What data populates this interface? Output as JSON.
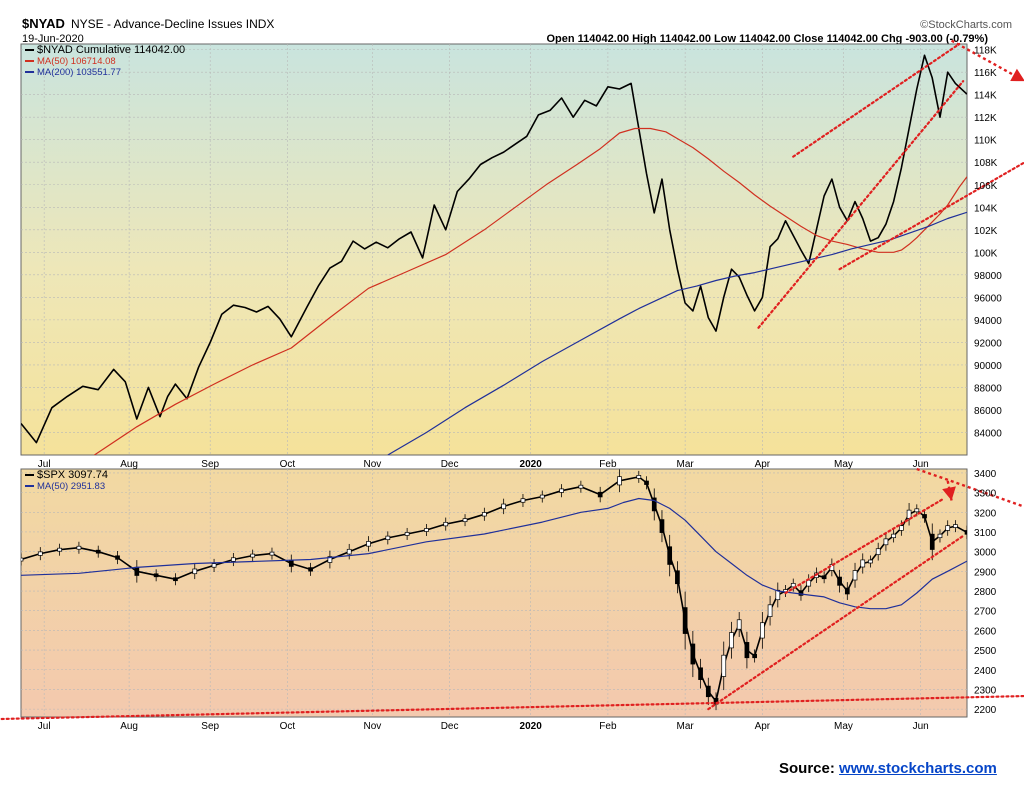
{
  "header": {
    "symbol": "$NYAD",
    "description": "NYSE - Advance-Decline Issues INDX",
    "date": "19-Jun-2020",
    "watermark": "©StockCharts.com",
    "ohlc_text": "Open 114042.00  High 114042.00  Low 114042.00  Close 114042.00  Chg -903.00 (-0.79%)"
  },
  "source": {
    "label": "Source:",
    "link": "www.stockcharts.com"
  },
  "chart_data": [
    {
      "type": "line",
      "panel": "upper",
      "legend": [
        {
          "label": "$NYAD Cumulative 114042.00",
          "color": "#000000"
        },
        {
          "label": "MA(50) 106714.08",
          "color": "#d03020"
        },
        {
          "label": "MA(200) 103551.77",
          "color": "#20309a"
        }
      ],
      "x_labels": [
        "Jul",
        "Aug",
        "Sep",
        "Oct",
        "Nov",
        "Dec",
        "2020",
        "Feb",
        "Mar",
        "Apr",
        "May",
        "Jun"
      ],
      "x_range": [
        0,
        245
      ],
      "label_x": [
        6,
        28,
        49,
        69,
        91,
        111,
        132,
        152,
        172,
        192,
        213,
        233
      ],
      "ylim": [
        82000,
        118500
      ],
      "y_ticks": [
        84000,
        86000,
        88000,
        90000,
        92000,
        94000,
        96000,
        98000,
        100000,
        102000,
        104000,
        106000,
        108000,
        110000,
        112000,
        114000,
        116000,
        118000
      ],
      "y_tick_labels": [
        "84000",
        "86000",
        "88000",
        "90000",
        "92000",
        "94000",
        "96000",
        "98000",
        "100K",
        "102K",
        "104K",
        "106K",
        "108K",
        "110K",
        "112K",
        "114K",
        "116K",
        "118K"
      ],
      "series": [
        {
          "name": "$NYAD Cumulative",
          "color": "#000000",
          "x": [
            0,
            4,
            8,
            12,
            16,
            20,
            24,
            27,
            30,
            33,
            36,
            38,
            40,
            43,
            46,
            49,
            52,
            55,
            58,
            61,
            64,
            67,
            70,
            72,
            74,
            77,
            80,
            83,
            86,
            89,
            92,
            95,
            98,
            101,
            104,
            107,
            110,
            113,
            116,
            119,
            122,
            125,
            128,
            131,
            134,
            137,
            140,
            143,
            146,
            149,
            152,
            155,
            158,
            160,
            162,
            164,
            166,
            168,
            170,
            172,
            174,
            176,
            178,
            180,
            182,
            184,
            186,
            188,
            190,
            192,
            194,
            196,
            198,
            200,
            202,
            204,
            206,
            208,
            210,
            212,
            214,
            216,
            218,
            220,
            222,
            224,
            226,
            228,
            230,
            232,
            234,
            236,
            238,
            240,
            242,
            245
          ],
          "y": [
            84800,
            83100,
            86200,
            87200,
            88100,
            87800,
            89600,
            88500,
            85200,
            88000,
            85400,
            87200,
            88300,
            87000,
            89800,
            92000,
            94500,
            95300,
            95100,
            94700,
            95200,
            94100,
            92500,
            93800,
            95100,
            97000,
            98600,
            99200,
            101000,
            100300,
            100900,
            100400,
            101200,
            101800,
            99500,
            104200,
            102000,
            105400,
            106500,
            107800,
            108400,
            108900,
            109600,
            110300,
            112200,
            112600,
            113700,
            112000,
            113500,
            113000,
            114700,
            114500,
            115000,
            111000,
            107000,
            103500,
            106500,
            102000,
            98500,
            95500,
            94800,
            97000,
            94200,
            93000,
            96000,
            98500,
            97800,
            96200,
            94800,
            96000,
            100500,
            101200,
            102800,
            101500,
            100200,
            99000,
            102000,
            105000,
            106500,
            104000,
            102800,
            104500,
            103000,
            101000,
            101300,
            102500,
            104500,
            107500,
            111000,
            114500,
            117500,
            115500,
            112000,
            116000,
            115000,
            114042
          ]
        },
        {
          "name": "MA(50)",
          "color": "#d03020",
          "x": [
            19,
            30,
            40,
            50,
            60,
            70,
            80,
            90,
            100,
            110,
            120,
            128,
            136,
            144,
            150,
            155,
            159,
            163,
            167,
            170,
            174,
            178,
            182,
            186,
            190,
            194,
            198,
            202,
            206,
            210,
            214,
            218,
            222,
            226,
            228,
            230,
            232,
            234,
            236,
            238,
            240,
            243,
            245
          ],
          "y": [
            82000,
            84500,
            86500,
            88300,
            90000,
            91500,
            94200,
            96800,
            98300,
            99800,
            102000,
            104000,
            106000,
            107800,
            109200,
            110600,
            111000,
            111000,
            110700,
            110100,
            109300,
            108300,
            107200,
            106200,
            105100,
            104100,
            103200,
            102300,
            101500,
            101000,
            100700,
            100300,
            100000,
            100000,
            100200,
            100700,
            101300,
            102000,
            102700,
            103400,
            104200,
            105800,
            106714
          ]
        },
        {
          "name": "MA(200)",
          "color": "#20309a",
          "x": [
            95,
            105,
            115,
            125,
            135,
            145,
            155,
            160,
            165,
            170,
            175,
            180,
            185,
            190,
            195,
            200,
            205,
            210,
            215,
            220,
            225,
            230,
            235,
            240,
            245
          ],
          "y": [
            82000,
            84000,
            86200,
            88200,
            90300,
            92200,
            94100,
            95000,
            95800,
            96600,
            97000,
            97500,
            97900,
            98200,
            98600,
            99000,
            99400,
            99800,
            100300,
            100700,
            101100,
            101700,
            102300,
            103000,
            103552
          ]
        }
      ],
      "annotations": [
        {
          "kind": "dotted-line",
          "color": "#e02020",
          "x": [
            200,
            243
          ],
          "y": [
            108500,
            118500
          ]
        },
        {
          "kind": "dotted-line",
          "color": "#e02020",
          "x": [
            191,
            244
          ],
          "y": [
            93300,
            115200
          ]
        },
        {
          "kind": "dotted-line",
          "color": "#e02020",
          "x": [
            212,
            265
          ],
          "y": [
            98500,
            109000
          ]
        },
        {
          "kind": "arrow",
          "color": "#e02020",
          "x": [
            241,
            260
          ],
          "y": [
            118800,
            115200
          ]
        }
      ]
    },
    {
      "type": "candlestick",
      "panel": "lower",
      "legend": [
        {
          "label": "$SPX 3097.74",
          "color": "#000000"
        },
        {
          "label": "MA(50) 2951.83",
          "color": "#20309a"
        }
      ],
      "x_labels": [
        "Jul",
        "Aug",
        "Sep",
        "Oct",
        "Nov",
        "Dec",
        "2020",
        "Feb",
        "Mar",
        "Apr",
        "May",
        "Jun"
      ],
      "x_range": [
        0,
        245
      ],
      "label_x": [
        6,
        28,
        49,
        69,
        91,
        111,
        132,
        152,
        172,
        192,
        213,
        233
      ],
      "ylim": [
        2160,
        3420
      ],
      "y_ticks": [
        2200,
        2300,
        2400,
        2500,
        2600,
        2700,
        2800,
        2900,
        3000,
        3100,
        3200,
        3300,
        3400
      ],
      "series": [
        {
          "name": "$SPX",
          "color": "#000000",
          "x": [
            0,
            5,
            10,
            15,
            20,
            25,
            30,
            35,
            40,
            45,
            50,
            55,
            60,
            65,
            70,
            75,
            80,
            85,
            90,
            95,
            100,
            105,
            110,
            115,
            120,
            125,
            130,
            135,
            140,
            145,
            150,
            155,
            160,
            162,
            164,
            166,
            168,
            170,
            172,
            174,
            176,
            178,
            180,
            182,
            184,
            186,
            188,
            190,
            192,
            194,
            196,
            198,
            200,
            202,
            204,
            206,
            208,
            210,
            212,
            214,
            216,
            218,
            220,
            222,
            224,
            226,
            228,
            230,
            232,
            234,
            236,
            238,
            240,
            242,
            245
          ],
          "y": [
            2960,
            2990,
            3010,
            3020,
            3000,
            2970,
            2900,
            2880,
            2860,
            2900,
            2930,
            2960,
            2980,
            2990,
            2940,
            2910,
            2960,
            3000,
            3040,
            3070,
            3090,
            3110,
            3140,
            3160,
            3190,
            3230,
            3260,
            3280,
            3310,
            3330,
            3290,
            3360,
            3380,
            3350,
            3240,
            3130,
            2980,
            2870,
            2650,
            2480,
            2380,
            2290,
            2240,
            2420,
            2550,
            2630,
            2500,
            2470,
            2600,
            2700,
            2780,
            2800,
            2830,
            2790,
            2840,
            2880,
            2870,
            2920,
            2850,
            2800,
            2880,
            2940,
            2950,
            3000,
            3050,
            3080,
            3120,
            3190,
            3210,
            3180,
            3050,
            3080,
            3120,
            3130,
            3098
          ]
        },
        {
          "name": "MA(50)",
          "color": "#20309a",
          "x": [
            0,
            15,
            30,
            45,
            60,
            75,
            90,
            105,
            120,
            135,
            145,
            152,
            156,
            160,
            164,
            168,
            172,
            176,
            180,
            184,
            188,
            192,
            196,
            200,
            204,
            208,
            212,
            216,
            220,
            224,
            228,
            232,
            236,
            240,
            245
          ],
          "y": [
            2880,
            2890,
            2920,
            2940,
            2950,
            2960,
            2990,
            3050,
            3090,
            3150,
            3200,
            3220,
            3250,
            3270,
            3260,
            3220,
            3160,
            3080,
            3000,
            2940,
            2880,
            2830,
            2800,
            2790,
            2780,
            2770,
            2740,
            2720,
            2710,
            2710,
            2730,
            2790,
            2860,
            2900,
            2952
          ]
        }
      ],
      "annotations": [
        {
          "kind": "dotted-line",
          "color": "#e02020",
          "x": [
            198,
            239
          ],
          "y": [
            2790,
            3270
          ]
        },
        {
          "kind": "dotted-line",
          "color": "#e02020",
          "x": [
            178,
            244
          ],
          "y": [
            2200,
            3080
          ]
        },
        {
          "kind": "dotted-line",
          "color": "#e02020",
          "x": [
            -5,
            268
          ],
          "y": [
            2150,
            2270
          ]
        },
        {
          "kind": "arrow",
          "color": "#e02020",
          "x": [
            232,
            264
          ],
          "y": [
            3420,
            3200
          ]
        },
        {
          "kind": "arrow",
          "color": "#e02020",
          "x": [
            240,
            241
          ],
          "y": [
            3360,
            3260
          ]
        }
      ]
    }
  ]
}
